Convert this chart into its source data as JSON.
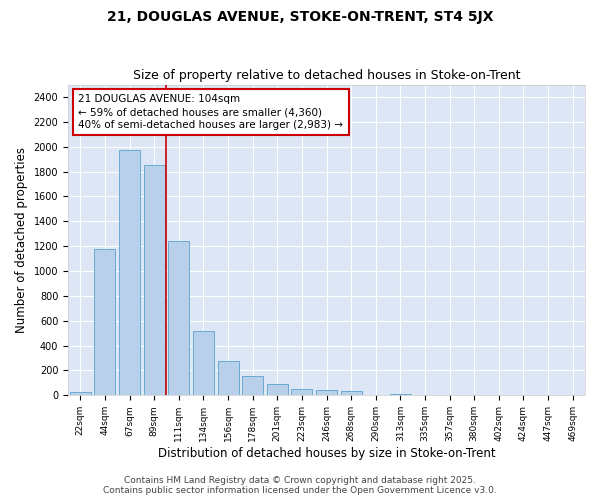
{
  "title1": "21, DOUGLAS AVENUE, STOKE-ON-TRENT, ST4 5JX",
  "title2": "Size of property relative to detached houses in Stoke-on-Trent",
  "xlabel": "Distribution of detached houses by size in Stoke-on-Trent",
  "ylabel": "Number of detached properties",
  "categories": [
    "22sqm",
    "44sqm",
    "67sqm",
    "89sqm",
    "111sqm",
    "134sqm",
    "156sqm",
    "178sqm",
    "201sqm",
    "223sqm",
    "246sqm",
    "268sqm",
    "290sqm",
    "313sqm",
    "335sqm",
    "357sqm",
    "380sqm",
    "402sqm",
    "424sqm",
    "447sqm",
    "469sqm"
  ],
  "values": [
    30,
    1175,
    1975,
    1850,
    1245,
    515,
    275,
    155,
    90,
    50,
    40,
    35,
    5,
    10,
    3,
    2,
    2,
    2,
    1,
    1,
    1
  ],
  "bar_color": "#b8d0ea",
  "bar_edge_color": "#6aaad4",
  "fig_background_color": "#ffffff",
  "plot_background_color": "#dce6f5",
  "grid_color": "#ffffff",
  "vline_color": "#cc0000",
  "vline_x": 3.5,
  "annotation_text": "21 DOUGLAS AVENUE: 104sqm\n← 59% of detached houses are smaller (4,360)\n40% of semi-detached houses are larger (2,983) →",
  "annotation_box_color": "#ffffff",
  "annotation_edge_color": "#cc0000",
  "ylim": [
    0,
    2500
  ],
  "yticks": [
    0,
    200,
    400,
    600,
    800,
    1000,
    1200,
    1400,
    1600,
    1800,
    2000,
    2200,
    2400
  ],
  "footer": "Contains HM Land Registry data © Crown copyright and database right 2025.\nContains public sector information licensed under the Open Government Licence v3.0.",
  "title_fontsize": 10,
  "subtitle_fontsize": 9,
  "axis_label_fontsize": 8.5,
  "tick_fontsize": 7,
  "annotation_fontsize": 7.5,
  "footer_fontsize": 6.5
}
